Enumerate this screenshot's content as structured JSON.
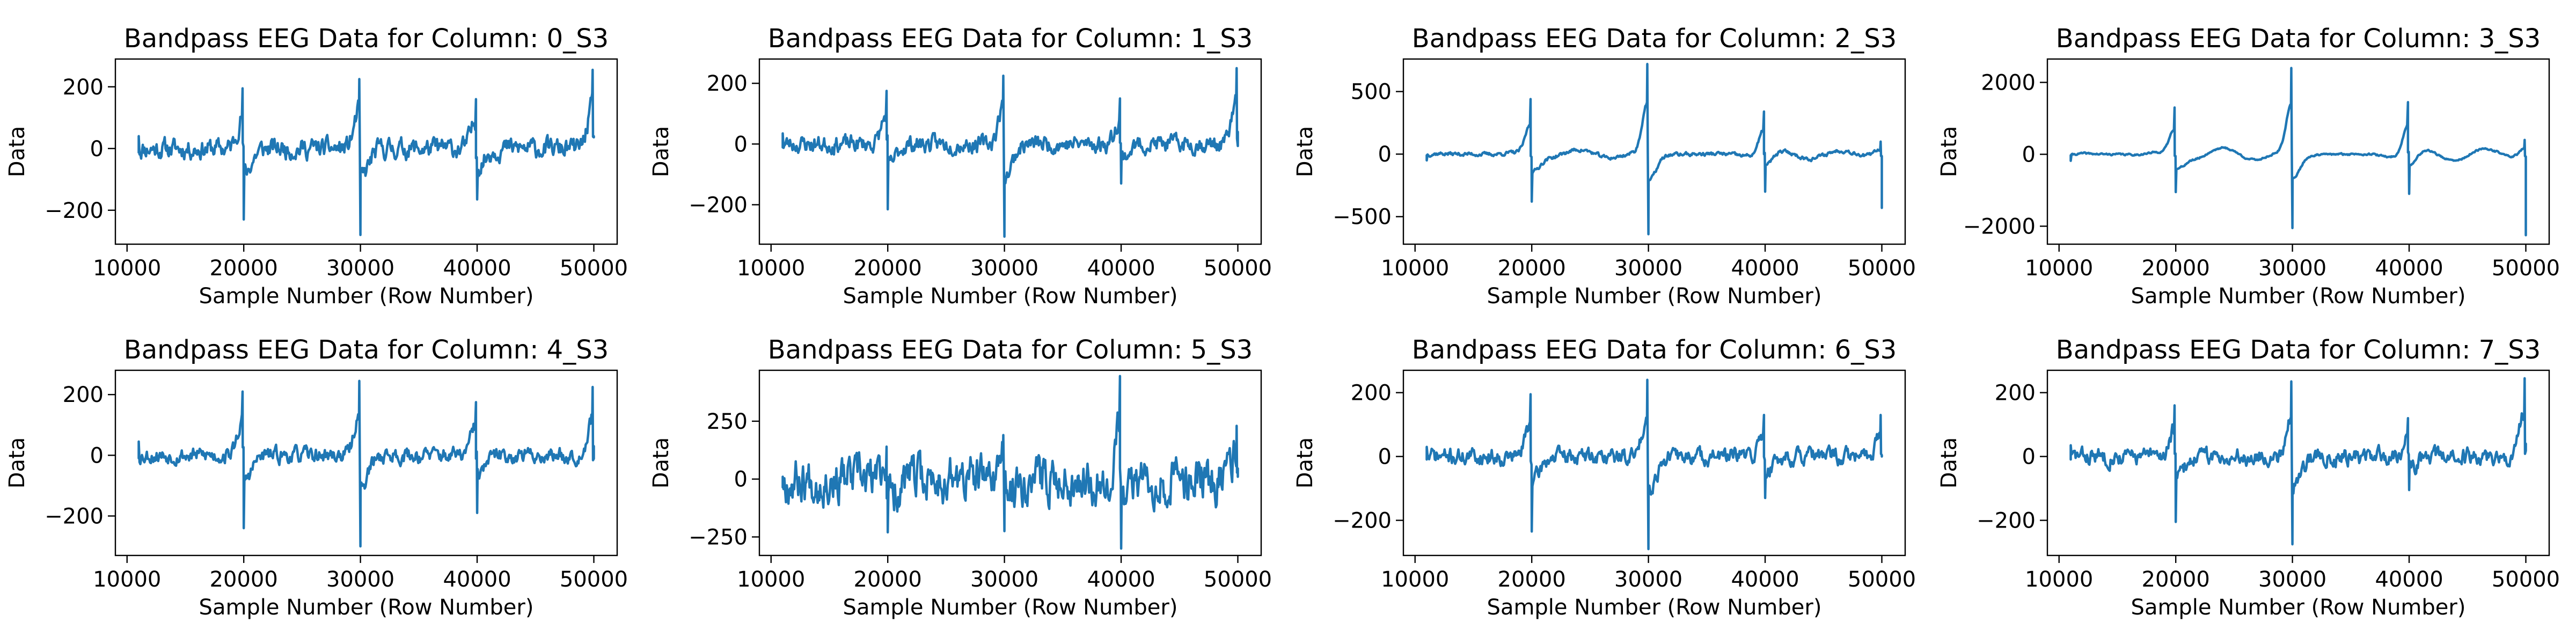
{
  "figure": {
    "line_color": "#1f77b4",
    "chart_data": [
      {
        "type": "line",
        "title": "Bandpass EEG Data for Column: 0_S3",
        "xlabel": "Sample Number (Row Number)",
        "ylabel": "Data",
        "xlim": [
          9000,
          52000
        ],
        "ylim": [
          -310,
          290
        ],
        "xticks": [
          10000,
          20000,
          30000,
          40000,
          50000
        ],
        "xtick_labels": [
          "10000",
          "20000",
          "30000",
          "40000",
          "50000"
        ],
        "yticks": [
          -200,
          0,
          200
        ],
        "ytick_labels": [
          "−200",
          "0",
          "200"
        ],
        "x": [
          11000,
          19900,
          20000,
          29900,
          30000,
          39900,
          40000,
          49900,
          50000
        ],
        "y": [
          40,
          195,
          -230,
          225,
          -280,
          160,
          -165,
          255,
          40
        ],
        "noise": 25,
        "amp": 0,
        "seed": 11
      },
      {
        "type": "line",
        "title": "Bandpass EEG Data for Column: 1_S3",
        "xlabel": "Sample Number (Row Number)",
        "ylabel": "Data",
        "xlim": [
          9000,
          52000
        ],
        "ylim": [
          -330,
          280
        ],
        "xticks": [
          10000,
          20000,
          30000,
          40000,
          50000
        ],
        "xtick_labels": [
          "10000",
          "20000",
          "30000",
          "40000",
          "50000"
        ],
        "yticks": [
          -200,
          0,
          200
        ],
        "ytick_labels": [
          "−200",
          "0",
          "200"
        ],
        "x": [
          11000,
          19900,
          20000,
          29900,
          30000,
          39900,
          40000,
          49900,
          50000
        ],
        "y": [
          35,
          175,
          -215,
          225,
          -305,
          150,
          -130,
          250,
          40
        ],
        "noise": 22,
        "amp": 0,
        "seed": 23
      },
      {
        "type": "line",
        "title": "Bandpass EEG Data for Column: 2_S3",
        "xlabel": "Sample Number (Row Number)",
        "ylabel": "Data",
        "xlim": [
          9000,
          52000
        ],
        "ylim": [
          -720,
          760
        ],
        "xticks": [
          10000,
          20000,
          30000,
          40000,
          50000
        ],
        "xtick_labels": [
          "10000",
          "20000",
          "30000",
          "40000",
          "50000"
        ],
        "yticks": [
          -500,
          0,
          500
        ],
        "ytick_labels": [
          "−500",
          "0",
          "500"
        ],
        "x": [
          11000,
          19900,
          20000,
          29900,
          30000,
          39900,
          40000,
          49900,
          50000
        ],
        "y": [
          -50,
          440,
          -380,
          720,
          -640,
          340,
          -300,
          100,
          -430
        ],
        "noise": 12,
        "amp": 35,
        "seed": 37
      },
      {
        "type": "line",
        "title": "Bandpass EEG Data for Column: 3_S3",
        "xlabel": "Sample Number (Row Number)",
        "ylabel": "Data",
        "xlim": [
          9000,
          52000
        ],
        "ylim": [
          -2500,
          2650
        ],
        "xticks": [
          10000,
          20000,
          30000,
          40000,
          50000
        ],
        "xtick_labels": [
          "10000",
          "20000",
          "30000",
          "40000",
          "50000"
        ],
        "yticks": [
          -2000,
          0,
          2000
        ],
        "ytick_labels": [
          "−2000",
          "0",
          "2000"
        ],
        "x": [
          11000,
          19900,
          20000,
          29900,
          30000,
          39900,
          40000,
          49900,
          50000
        ],
        "y": [
          -180,
          1300,
          -1050,
          2400,
          -2050,
          1450,
          -1100,
          400,
          -2250
        ],
        "noise": 20,
        "amp": 180,
        "seed": 41
      },
      {
        "type": "line",
        "title": "Bandpass EEG Data for Column: 4_S3",
        "xlabel": "Sample Number (Row Number)",
        "ylabel": "Data",
        "xlim": [
          9000,
          52000
        ],
        "ylim": [
          -330,
          280
        ],
        "xticks": [
          10000,
          20000,
          30000,
          40000,
          50000
        ],
        "xtick_labels": [
          "10000",
          "20000",
          "30000",
          "40000",
          "50000"
        ],
        "yticks": [
          -200,
          0,
          200
        ],
        "ytick_labels": [
          "−200",
          "0",
          "200"
        ],
        "x": [
          11000,
          19900,
          20000,
          29900,
          30000,
          39900,
          40000,
          49900,
          50000
        ],
        "y": [
          45,
          210,
          -240,
          245,
          -300,
          175,
          -190,
          225,
          30
        ],
        "noise": 20,
        "amp": 0,
        "seed": 53
      },
      {
        "type": "line",
        "title": "Bandpass EEG Data for Column: 5_S3",
        "xlabel": "Sample Number (Row Number)",
        "ylabel": "Data",
        "xlim": [
          9000,
          52000
        ],
        "ylim": [
          -330,
          470
        ],
        "xticks": [
          10000,
          20000,
          30000,
          40000,
          50000
        ],
        "xtick_labels": [
          "10000",
          "20000",
          "30000",
          "40000",
          "50000"
        ],
        "yticks": [
          -250,
          0,
          250
        ],
        "ytick_labels": [
          "−250",
          "0",
          "250"
        ],
        "x": [
          11000,
          19900,
          20000,
          29900,
          30000,
          39900,
          40000,
          49900,
          50000
        ],
        "y": [
          10,
          140,
          -230,
          190,
          -225,
          445,
          -300,
          230,
          10
        ],
        "noise": 75,
        "amp": 0,
        "seed": 67
      },
      {
        "type": "line",
        "title": "Bandpass EEG Data for Column: 6_S3",
        "xlabel": "Sample Number (Row Number)",
        "ylabel": "Data",
        "xlim": [
          9000,
          52000
        ],
        "ylim": [
          -310,
          270
        ],
        "xticks": [
          10000,
          20000,
          30000,
          40000,
          50000
        ],
        "xtick_labels": [
          "10000",
          "20000",
          "30000",
          "40000",
          "50000"
        ],
        "yticks": [
          -200,
          0,
          200
        ],
        "ytick_labels": [
          "−200",
          "0",
          "200"
        ],
        "x": [
          11000,
          19900,
          20000,
          29900,
          30000,
          39900,
          40000,
          49900,
          50000
        ],
        "y": [
          30,
          195,
          -235,
          240,
          -290,
          130,
          -130,
          130,
          0
        ],
        "noise": 20,
        "amp": 0,
        "seed": 71
      },
      {
        "type": "line",
        "title": "Bandpass EEG Data for Column: 7_S3",
        "xlabel": "Sample Number (Row Number)",
        "ylabel": "Data",
        "xlim": [
          9000,
          52000
        ],
        "ylim": [
          -310,
          270
        ],
        "xticks": [
          10000,
          20000,
          30000,
          40000,
          50000
        ],
        "xtick_labels": [
          "10000",
          "20000",
          "30000",
          "40000",
          "50000"
        ],
        "yticks": [
          -200,
          0,
          200
        ],
        "ytick_labels": [
          "−200",
          "0",
          "200"
        ],
        "x": [
          11000,
          19900,
          20000,
          29900,
          30000,
          39900,
          40000,
          49900,
          50000
        ],
        "y": [
          35,
          160,
          -205,
          235,
          -275,
          120,
          -105,
          245,
          40
        ],
        "noise": 20,
        "amp": 0,
        "seed": 83
      }
    ]
  }
}
